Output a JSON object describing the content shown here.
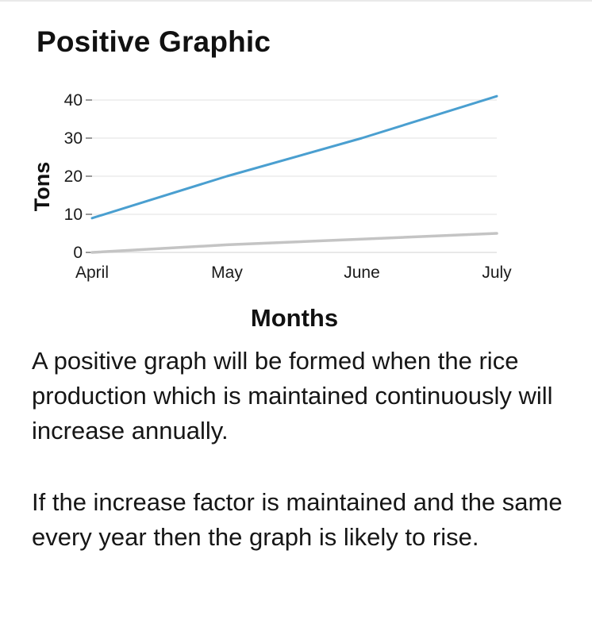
{
  "card": {
    "title": "Positive Graphic",
    "paragraphs": [
      "A positive graph will be formed when the rice production which is maintained continuously will increase annually.",
      "If the increase factor is maintained and the same every year then the graph is likely to rise."
    ]
  },
  "chart_data": {
    "type": "line",
    "title": "",
    "xlabel": "Months",
    "ylabel": "Tons",
    "categories": [
      "April",
      "May",
      "June",
      "July"
    ],
    "yticks": [
      0,
      10,
      20,
      30,
      40
    ],
    "ylim": [
      0,
      40
    ],
    "grid": true,
    "series": [
      {
        "values": [
          9,
          20,
          30,
          41
        ],
        "color": "#4a9fd0"
      },
      {
        "values": [
          0,
          2,
          3.5,
          5
        ],
        "color": "#c4c4c4"
      }
    ]
  }
}
